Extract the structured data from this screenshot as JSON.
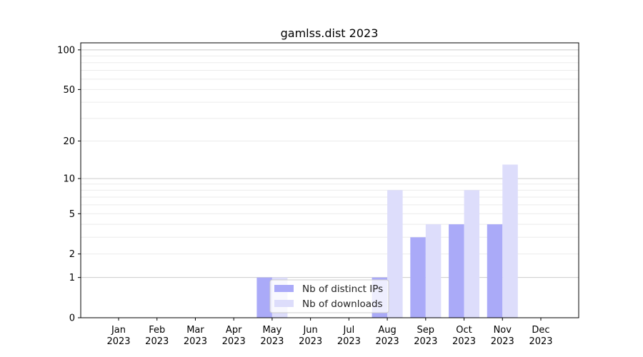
{
  "chart_data": {
    "type": "bar",
    "title": "gamlss.dist 2023",
    "xlabel": "",
    "ylabel": "",
    "categories": [
      "Jan\n2023",
      "Feb\n2023",
      "Mar\n2023",
      "Apr\n2023",
      "May\n2023",
      "Jun\n2023",
      "Jul\n2023",
      "Aug\n2023",
      "Sep\n2023",
      "Oct\n2023",
      "Nov\n2023",
      "Dec\n2023"
    ],
    "series": [
      {
        "name": "Nb of distinct IPs",
        "color": "#aaaaf8",
        "values": [
          0,
          0,
          0,
          0,
          1,
          0,
          0,
          1,
          3,
          4,
          4,
          0
        ]
      },
      {
        "name": "Nb of downloads",
        "color": "#ddddfb",
        "values": [
          0,
          0,
          0,
          0,
          1,
          0,
          0,
          8,
          4,
          8,
          13,
          0
        ]
      }
    ],
    "yscale": "symlog",
    "ylim": [
      0,
      113
    ],
    "yticks": [
      0,
      1,
      2,
      5,
      10,
      20,
      50,
      100
    ],
    "grid": true,
    "legend": "lower-center"
  }
}
